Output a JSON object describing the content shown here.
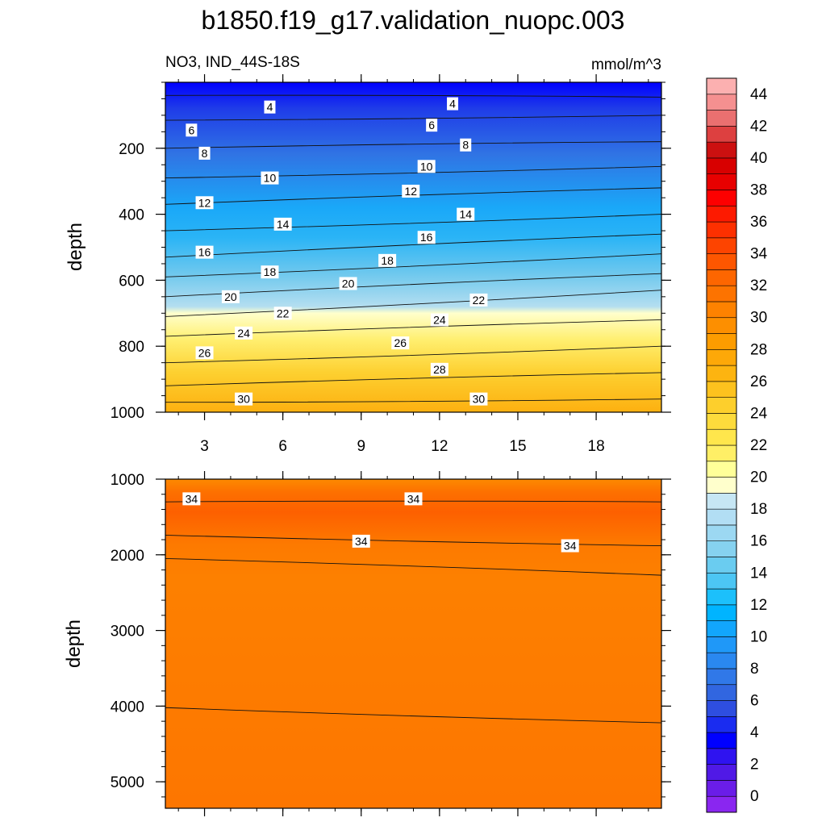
{
  "title": "b1850.f19_g17.validation_nuopc.003",
  "subtitle_left": "NO3, IND_44S-18S",
  "subtitle_right": "mmol/m^3",
  "chart_data": [
    {
      "type": "contour",
      "panel": "upper",
      "ylabel": "depth",
      "xlim": [
        1.5,
        20.5
      ],
      "ylim": [
        1000,
        0
      ],
      "xticks": [
        3,
        6,
        9,
        12,
        15,
        18
      ],
      "yticks": [
        200,
        400,
        600,
        800,
        1000
      ],
      "contour_interval": 2,
      "contours": [
        {
          "level": 4,
          "depth_left": 40,
          "depth_right": 45
        },
        {
          "level": 6,
          "depth_left": 115,
          "depth_right": 100
        },
        {
          "level": 8,
          "depth_left": 200,
          "depth_right": 180
        },
        {
          "level": 10,
          "depth_left": 290,
          "depth_right": 255
        },
        {
          "level": 12,
          "depth_left": 370,
          "depth_right": 320
        },
        {
          "level": 14,
          "depth_left": 450,
          "depth_right": 400
        },
        {
          "level": 16,
          "depth_left": 530,
          "depth_right": 460
        },
        {
          "level": 18,
          "depth_left": 590,
          "depth_right": 520
        },
        {
          "level": 20,
          "depth_left": 650,
          "depth_right": 580
        },
        {
          "level": 22,
          "depth_left": 710,
          "depth_right": 630
        },
        {
          "level": 24,
          "depth_left": 770,
          "depth_right": 720
        },
        {
          "level": 26,
          "depth_left": 850,
          "depth_right": 800
        },
        {
          "level": 28,
          "depth_left": 920,
          "depth_right": 880
        },
        {
          "level": 30,
          "depth_left": 970,
          "depth_right": 960
        }
      ],
      "labels": [
        {
          "text": "4",
          "x": 5.5,
          "depth": 75
        },
        {
          "text": "4",
          "x": 12.5,
          "depth": 65
        },
        {
          "text": "6",
          "x": 2.5,
          "depth": 145
        },
        {
          "text": "6",
          "x": 11.7,
          "depth": 130
        },
        {
          "text": "8",
          "x": 3.0,
          "depth": 215
        },
        {
          "text": "8",
          "x": 13.0,
          "depth": 190
        },
        {
          "text": "10",
          "x": 5.5,
          "depth": 290
        },
        {
          "text": "10",
          "x": 11.5,
          "depth": 255
        },
        {
          "text": "12",
          "x": 3.0,
          "depth": 365
        },
        {
          "text": "12",
          "x": 10.9,
          "depth": 330
        },
        {
          "text": "14",
          "x": 6.0,
          "depth": 430
        },
        {
          "text": "14",
          "x": 13.0,
          "depth": 400
        },
        {
          "text": "16",
          "x": 3.0,
          "depth": 515
        },
        {
          "text": "16",
          "x": 11.5,
          "depth": 470
        },
        {
          "text": "18",
          "x": 5.5,
          "depth": 575
        },
        {
          "text": "18",
          "x": 10.0,
          "depth": 540
        },
        {
          "text": "20",
          "x": 4.0,
          "depth": 650
        },
        {
          "text": "20",
          "x": 8.5,
          "depth": 610
        },
        {
          "text": "22",
          "x": 6.0,
          "depth": 700
        },
        {
          "text": "22",
          "x": 13.5,
          "depth": 660
        },
        {
          "text": "24",
          "x": 4.5,
          "depth": 760
        },
        {
          "text": "24",
          "x": 12.0,
          "depth": 720
        },
        {
          "text": "26",
          "x": 3.0,
          "depth": 820
        },
        {
          "text": "26",
          "x": 10.5,
          "depth": 790
        },
        {
          "text": "28",
          "x": 12.0,
          "depth": 870
        },
        {
          "text": "30",
          "x": 4.5,
          "depth": 960
        },
        {
          "text": "30",
          "x": 13.5,
          "depth": 960
        }
      ]
    },
    {
      "type": "contour",
      "panel": "lower",
      "ylabel": "depth",
      "xlim": [
        1.5,
        20.5
      ],
      "ylim": [
        5350,
        1000
      ],
      "yticks": [
        1000,
        2000,
        3000,
        4000,
        5000
      ],
      "contours": [
        {
          "level": 34,
          "depth_left": 1300,
          "depth_right": 1300
        },
        {
          "level": 34,
          "depth_left": 1740,
          "depth_right": 1880
        },
        {
          "level": 34,
          "depth_left": 2050,
          "depth_right": 2270
        },
        {
          "level": 34,
          "depth_left": 4020,
          "depth_right": 4220
        }
      ],
      "labels": [
        {
          "text": "34",
          "x": 2.5,
          "depth": 1260
        },
        {
          "text": "34",
          "x": 11.0,
          "depth": 1260
        },
        {
          "text": "34",
          "x": 9.0,
          "depth": 1820
        },
        {
          "text": "34",
          "x": 17.0,
          "depth": 1880
        }
      ]
    }
  ],
  "colorbar": {
    "labels": [
      "0",
      "2",
      "4",
      "6",
      "8",
      "10",
      "12",
      "14",
      "16",
      "18",
      "20",
      "22",
      "24",
      "26",
      "28",
      "30",
      "32",
      "34",
      "36",
      "38",
      "40",
      "42",
      "44"
    ],
    "colors": [
      "#8a26f0",
      "#6a1de8",
      "#5019e6",
      "#2f13f0",
      "#0000ff",
      "#1a2cf0",
      "#2e4ee0",
      "#3166e0",
      "#3078e8",
      "#2a88f0",
      "#1f98f8",
      "#12a6fc",
      "#00b4ff",
      "#1cc0fb",
      "#4cc6f4",
      "#6accf0",
      "#86d2f0",
      "#9cd8f2",
      "#b2def4",
      "#c6e6f4",
      "#ffffcc",
      "#ffff99",
      "#ffef66",
      "#ffe64c",
      "#fddb3c",
      "#fdcf2c",
      "#fdc21e",
      "#fdb410",
      "#fda808",
      "#fd9c00",
      "#fd8f00",
      "#fd8200",
      "#fd7300",
      "#fd6600",
      "#fd5600",
      "#fd4400",
      "#fd3000",
      "#fd1a00",
      "#fd0000",
      "#e80000",
      "#d80000",
      "#cc1010",
      "#dd4040",
      "#ea7070",
      "#f59090",
      "#fcb0b0"
    ]
  }
}
